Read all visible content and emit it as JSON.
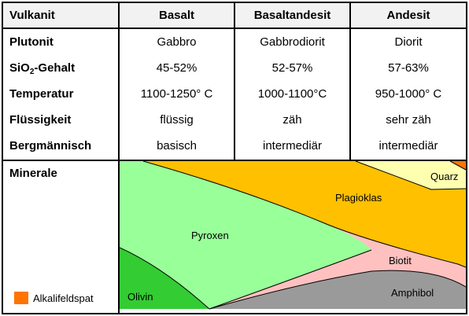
{
  "headers": {
    "col0": "Vulkanit",
    "col1": "Basalt",
    "col2": "Basaltandesit",
    "col3": "Andesit"
  },
  "rows": [
    {
      "label": "Plutonit",
      "values": [
        "Gabbro",
        "Gabbrodiorit",
        "Diorit"
      ]
    },
    {
      "label_main": "SiO",
      "label_sub": "2",
      "label_rest": "-Gehalt",
      "values": [
        "45-52%",
        "52-57%",
        "57-63%"
      ]
    },
    {
      "label": "Temperatur",
      "values": [
        "1100-1250° C",
        "1000-1100°C",
        "950-1000° C"
      ]
    },
    {
      "label": "Flüssigkeit",
      "values": [
        "flüssig",
        "zäh",
        "sehr zäh"
      ]
    },
    {
      "label": "Bergmännisch",
      "values": [
        "basisch",
        "intermediär",
        "intermediär"
      ]
    }
  ],
  "minerals": {
    "heading": "Minerale",
    "legend_label": "Alkalifeldspat",
    "labels": {
      "plagioklas": "Plagioklas",
      "quarz": "Quarz",
      "pyroxen": "Pyroxen",
      "biotit": "Biotit",
      "olivin": "Olivin",
      "amphibol": "Amphibol"
    },
    "colors": {
      "plagioklas": "#ffc000",
      "quarz": "#ffffb0",
      "pyroxen": "#99ff99",
      "biotit": "#ffc0c0",
      "olivin": "#33cc33",
      "amphibol": "#9a9a9a",
      "alkalifeldspat": "#ff7400"
    }
  }
}
